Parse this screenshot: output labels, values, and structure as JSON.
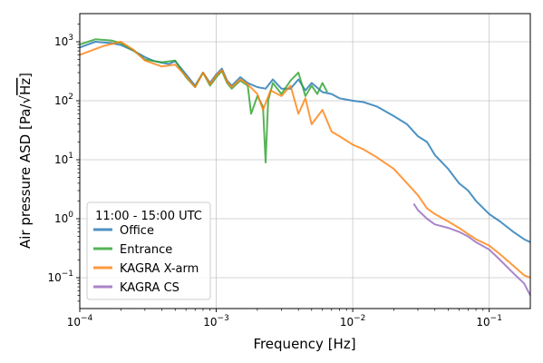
{
  "chart_data": {
    "type": "line",
    "xlabel": "Frequency [Hz]",
    "ylabel_prefix": "Air pressure ASD [Pa/√",
    "ylabel_unit": "Hz",
    "ylabel_suffix": "]",
    "xscale": "log",
    "yscale": "log",
    "xlim": [
      0.0001,
      0.2
    ],
    "ylim": [
      0.03,
      3000
    ],
    "grid": true,
    "x_ticks": [
      {
        "value": 0.0001,
        "base": "10",
        "exp": "−4"
      },
      {
        "value": 0.001,
        "base": "10",
        "exp": "−3"
      },
      {
        "value": 0.01,
        "base": "10",
        "exp": "−2"
      },
      {
        "value": 0.1,
        "base": "10",
        "exp": "−1"
      }
    ],
    "y_ticks": [
      {
        "value": 0.1,
        "base": "10",
        "exp": "−1"
      },
      {
        "value": 1,
        "base": "10",
        "exp": "0"
      },
      {
        "value": 10,
        "base": "10",
        "exp": "1"
      },
      {
        "value": 100,
        "base": "10",
        "exp": "2"
      },
      {
        "value": 1000,
        "base": "10",
        "exp": "3"
      }
    ],
    "legend": {
      "title": "11:00 - 15:00 UTC",
      "placement": "lower-left"
    },
    "series": [
      {
        "name": "Office",
        "color": "#1f77b4",
        "points": [
          [
            0.0001,
            800
          ],
          [
            0.00013,
            1000
          ],
          [
            0.00017,
            950
          ],
          [
            0.0002,
            880
          ],
          [
            0.00025,
            700
          ],
          [
            0.0003,
            550
          ],
          [
            0.00035,
            470
          ],
          [
            0.0004,
            440
          ],
          [
            0.00045,
            420
          ],
          [
            0.0005,
            470
          ],
          [
            0.0006,
            280
          ],
          [
            0.0007,
            180
          ],
          [
            0.0008,
            300
          ],
          [
            0.0009,
            200
          ],
          [
            0.001,
            280
          ],
          [
            0.0011,
            350
          ],
          [
            0.0012,
            220
          ],
          [
            0.0013,
            180
          ],
          [
            0.0015,
            250
          ],
          [
            0.0017,
            200
          ],
          [
            0.002,
            170
          ],
          [
            0.0023,
            160
          ],
          [
            0.0026,
            230
          ],
          [
            0.003,
            160
          ],
          [
            0.0035,
            160
          ],
          [
            0.004,
            230
          ],
          [
            0.0045,
            150
          ],
          [
            0.005,
            200
          ],
          [
            0.006,
            140
          ],
          [
            0.007,
            130
          ],
          [
            0.008,
            110
          ],
          [
            0.01,
            100
          ],
          [
            0.012,
            95
          ],
          [
            0.015,
            80
          ],
          [
            0.02,
            55
          ],
          [
            0.025,
            40
          ],
          [
            0.03,
            25
          ],
          [
            0.035,
            20
          ],
          [
            0.04,
            12
          ],
          [
            0.05,
            7
          ],
          [
            0.06,
            4
          ],
          [
            0.07,
            3
          ],
          [
            0.08,
            2
          ],
          [
            0.1,
            1.2
          ],
          [
            0.12,
            0.9
          ],
          [
            0.15,
            0.6
          ],
          [
            0.18,
            0.45
          ],
          [
            0.2,
            0.4
          ]
        ]
      },
      {
        "name": "Entrance",
        "color": "#2ca02c",
        "points": [
          [
            0.0001,
            900
          ],
          [
            0.00013,
            1100
          ],
          [
            0.00017,
            1050
          ],
          [
            0.0002,
            950
          ],
          [
            0.00025,
            700
          ],
          [
            0.0003,
            500
          ],
          [
            0.0004,
            450
          ],
          [
            0.0005,
            480
          ],
          [
            0.0006,
            250
          ],
          [
            0.0007,
            170
          ],
          [
            0.0008,
            300
          ],
          [
            0.0009,
            180
          ],
          [
            0.001,
            250
          ],
          [
            0.0011,
            320
          ],
          [
            0.0012,
            200
          ],
          [
            0.0013,
            160
          ],
          [
            0.0015,
            220
          ],
          [
            0.0017,
            180
          ],
          [
            0.0018,
            60
          ],
          [
            0.002,
            120
          ],
          [
            0.0022,
            80
          ],
          [
            0.0023,
            9
          ],
          [
            0.0024,
            100
          ],
          [
            0.0026,
            200
          ],
          [
            0.003,
            130
          ],
          [
            0.0035,
            220
          ],
          [
            0.004,
            300
          ],
          [
            0.0045,
            120
          ],
          [
            0.005,
            180
          ],
          [
            0.0055,
            130
          ],
          [
            0.006,
            200
          ],
          [
            0.0065,
            140
          ]
        ]
      },
      {
        "name": "KAGRA X-arm",
        "color": "#ff7f0e",
        "points": [
          [
            0.0001,
            600
          ],
          [
            0.00015,
            850
          ],
          [
            0.0002,
            1000
          ],
          [
            0.00025,
            720
          ],
          [
            0.0003,
            480
          ],
          [
            0.0004,
            380
          ],
          [
            0.0005,
            410
          ],
          [
            0.0006,
            260
          ],
          [
            0.0007,
            170
          ],
          [
            0.0008,
            300
          ],
          [
            0.0009,
            190
          ],
          [
            0.001,
            270
          ],
          [
            0.0011,
            330
          ],
          [
            0.0012,
            210
          ],
          [
            0.0013,
            170
          ],
          [
            0.0015,
            230
          ],
          [
            0.0017,
            190
          ],
          [
            0.002,
            130
          ],
          [
            0.0022,
            70
          ],
          [
            0.0025,
            150
          ],
          [
            0.003,
            120
          ],
          [
            0.0035,
            180
          ],
          [
            0.004,
            60
          ],
          [
            0.0045,
            110
          ],
          [
            0.005,
            40
          ],
          [
            0.006,
            70
          ],
          [
            0.007,
            30
          ],
          [
            0.008,
            25
          ],
          [
            0.01,
            18
          ],
          [
            0.012,
            15
          ],
          [
            0.015,
            11
          ],
          [
            0.02,
            7
          ],
          [
            0.025,
            4
          ],
          [
            0.03,
            2.5
          ],
          [
            0.035,
            1.5
          ],
          [
            0.04,
            1.2
          ],
          [
            0.05,
            0.9
          ],
          [
            0.06,
            0.7
          ],
          [
            0.07,
            0.55
          ],
          [
            0.08,
            0.45
          ],
          [
            0.1,
            0.35
          ],
          [
            0.12,
            0.25
          ],
          [
            0.15,
            0.16
          ],
          [
            0.18,
            0.11
          ],
          [
            0.2,
            0.1
          ]
        ]
      },
      {
        "name": "KAGRA CS",
        "color": "#9467bd",
        "points": [
          [
            0.028,
            1.8
          ],
          [
            0.03,
            1.4
          ],
          [
            0.035,
            1.0
          ],
          [
            0.04,
            0.8
          ],
          [
            0.05,
            0.7
          ],
          [
            0.06,
            0.6
          ],
          [
            0.07,
            0.5
          ],
          [
            0.08,
            0.4
          ],
          [
            0.1,
            0.3
          ],
          [
            0.12,
            0.2
          ],
          [
            0.15,
            0.12
          ],
          [
            0.18,
            0.08
          ],
          [
            0.2,
            0.05
          ]
        ]
      }
    ]
  }
}
